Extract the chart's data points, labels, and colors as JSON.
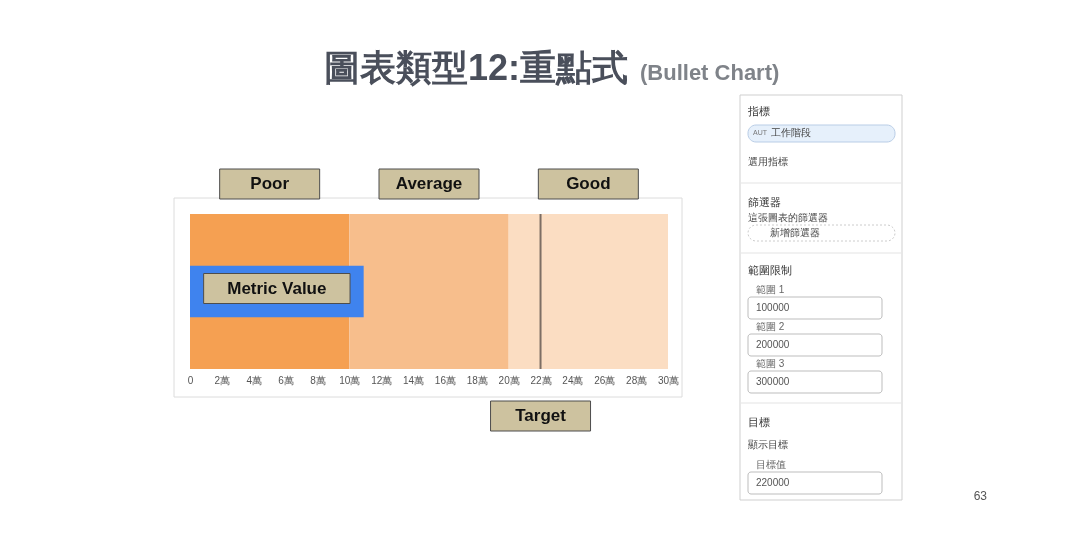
{
  "chart_data": [
    {
      "type": "bar",
      "title": "圖表類型12:重點式",
      "subtitle": "(Bullet Chart)",
      "orientation": "horizontal",
      "categories": [
        null
      ],
      "series": [
        {
          "name": "Metric Value",
          "color": "#3f83ee",
          "values": [
            10.9
          ]
        }
      ],
      "xlim": [
        0,
        30
      ],
      "xticks": [
        0,
        {
          "value": 2,
          "label": "2萬"
        },
        {
          "value": 4,
          "label": "4萬"
        },
        {
          "value": 6,
          "label": "6萬"
        },
        {
          "value": 8,
          "label": "8萬"
        },
        {
          "value": 10,
          "label": "10萬"
        },
        {
          "value": 12,
          "label": "12萬"
        },
        {
          "value": 14,
          "label": "14萬"
        },
        {
          "value": 16,
          "label": "16萬"
        },
        {
          "value": 18,
          "label": "18萬"
        },
        {
          "value": 20,
          "label": "20萬"
        },
        {
          "value": 22,
          "label": "22萬"
        },
        {
          "value": 24,
          "label": "24萬"
        },
        {
          "value": 26,
          "label": "26萬"
        },
        {
          "value": 28,
          "label": "28萬"
        },
        {
          "value": 30,
          "label": "30萬"
        }
      ],
      "tick_labels": "x",
      "bands": [
        {
          "axis": "x",
          "from": 0,
          "to": 10,
          "label": "Poor",
          "color": "#f5a052"
        },
        {
          "axis": "x",
          "from": 10,
          "to": 20,
          "label": "Average",
          "color": "#f7be8c"
        },
        {
          "axis": "x",
          "from": 20,
          "to": 30,
          "label": "Good",
          "color": "#fbddc2"
        }
      ],
      "ref_lines": [
        {
          "axis": "x",
          "value": 22,
          "label": "Target",
          "color": "#7d6e64"
        }
      ],
      "annotations": [
        "63"
      ]
    },
    {
      "type": "other",
      "annotations": [
        "指標",
        "AUT",
        "工作階段",
        "選用指標",
        "篩選器",
        "這張圖表的篩選器",
        "新增篩選器",
        "範圍限制",
        "範圍 1",
        "100000",
        "範圍 2",
        "200000",
        "範圍 3",
        "300000",
        "目標",
        "顯示目標",
        "目標值",
        "220000"
      ]
    }
  ]
}
